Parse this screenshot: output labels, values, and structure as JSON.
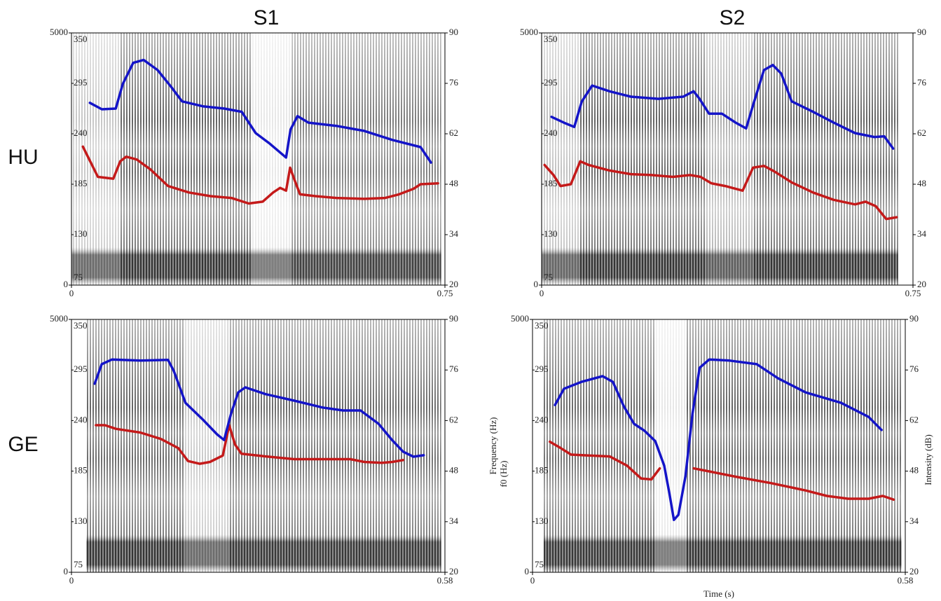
{
  "column_titles": [
    "S1",
    "S2"
  ],
  "row_labels": [
    "HU",
    "GE"
  ],
  "chart_data": [
    {
      "type": "line",
      "xlim": [
        0,
        0.75
      ],
      "xticks": [
        0,
        0.75
      ],
      "ylim": [
        75,
        350
      ],
      "yticks": [
        75,
        130,
        185,
        240,
        295,
        350
      ],
      "y2lim": [
        20,
        90
      ],
      "y2ticks": [
        20,
        34,
        48,
        62,
        76,
        90
      ],
      "freq_lim": [
        0,
        5000
      ],
      "freq_ticks": [
        0,
        5000
      ],
      "series": [
        {
          "color": "#c41a1a",
          "x": [
            0.023,
            0.053,
            0.084,
            0.098,
            0.11,
            0.131,
            0.159,
            0.194,
            0.236,
            0.279,
            0.321,
            0.356,
            0.384,
            0.405,
            0.419,
            0.431,
            0.439,
            0.447,
            0.459,
            0.49,
            0.532,
            0.588,
            0.63,
            0.658,
            0.687,
            0.701,
            0.736
          ],
          "values": [
            226,
            193,
            191,
            210,
            215,
            212,
            201,
            183,
            176,
            172,
            170,
            164,
            166,
            176,
            181,
            178,
            203,
            191,
            174,
            172,
            170,
            169,
            170,
            174,
            180,
            185,
            186
          ]
        },
        {
          "color": "#1414c8",
          "axis": "y2",
          "x": [
            0.037,
            0.061,
            0.089,
            0.103,
            0.124,
            0.145,
            0.173,
            0.201,
            0.222,
            0.265,
            0.307,
            0.342,
            0.37,
            0.398,
            0.419,
            0.431,
            0.44,
            0.454,
            0.476,
            0.532,
            0.588,
            0.644,
            0.701,
            0.722
          ],
          "values": [
            70.6,
            68.8,
            69.0,
            75.8,
            81.7,
            82.5,
            79.7,
            74.9,
            71.0,
            69.6,
            69.0,
            68.1,
            62.2,
            59.3,
            56.8,
            55.4,
            63.2,
            66.9,
            65.1,
            64.2,
            62.8,
            60.3,
            58.3,
            54.0
          ]
        }
      ]
    },
    {
      "type": "line",
      "xlim": [
        0,
        0.75
      ],
      "xticks": [
        0,
        0.75
      ],
      "ylim": [
        75,
        350
      ],
      "yticks": [
        75,
        130,
        185,
        240,
        295,
        350
      ],
      "y2lim": [
        20,
        90
      ],
      "y2ticks": [
        20,
        34,
        48,
        62,
        76,
        90
      ],
      "freq_lim": [
        0,
        5000
      ],
      "freq_ticks": [
        0,
        5000
      ],
      "series": [
        {
          "color": "#c41a1a",
          "x": [
            0.006,
            0.024,
            0.038,
            0.059,
            0.078,
            0.095,
            0.137,
            0.18,
            0.222,
            0.265,
            0.3,
            0.321,
            0.343,
            0.371,
            0.406,
            0.427,
            0.449,
            0.47,
            0.505,
            0.548,
            0.59,
            0.633,
            0.654,
            0.675,
            0.696,
            0.717
          ],
          "values": [
            206,
            195,
            183,
            185,
            210,
            206,
            200,
            196,
            195,
            193,
            195,
            193,
            186,
            183,
            178,
            203,
            205,
            199,
            187,
            176,
            168,
            163,
            166,
            161,
            147,
            149
          ]
        },
        {
          "color": "#1414c8",
          "axis": "y2",
          "x": [
            0.02,
            0.045,
            0.066,
            0.081,
            0.102,
            0.137,
            0.18,
            0.236,
            0.286,
            0.307,
            0.318,
            0.338,
            0.364,
            0.392,
            0.413,
            0.427,
            0.449,
            0.467,
            0.484,
            0.505,
            0.548,
            0.59,
            0.633,
            0.672,
            0.692,
            0.71
          ],
          "values": [
            66.7,
            65.1,
            63.9,
            70.9,
            75.4,
            73.8,
            72.3,
            71.7,
            72.3,
            73.8,
            71.9,
            67.6,
            67.6,
            65.1,
            63.5,
            69.9,
            79.7,
            81.1,
            78.7,
            71.0,
            68.1,
            65.1,
            62.2,
            61.1,
            61.3,
            57.9
          ]
        }
      ]
    },
    {
      "type": "line",
      "xlim": [
        0,
        0.58
      ],
      "xticks": [
        0,
        0.58
      ],
      "ylim": [
        75,
        350
      ],
      "yticks": [
        75,
        130,
        185,
        240,
        295,
        350
      ],
      "y2lim": [
        20,
        90
      ],
      "y2ticks": [
        20,
        34,
        48,
        62,
        76,
        90
      ],
      "freq_lim": [
        0,
        5000
      ],
      "freq_ticks": [
        0,
        5000
      ],
      "series": [
        {
          "color": "#c41a1a",
          "x": [
            0.038,
            0.052,
            0.069,
            0.107,
            0.139,
            0.166,
            0.181,
            0.199,
            0.215,
            0.235,
            0.245,
            0.254,
            0.264,
            0.302,
            0.346,
            0.39,
            0.433,
            0.455,
            0.482,
            0.498,
            0.515
          ],
          "values": [
            235,
            235,
            231,
            227,
            220,
            210,
            196,
            193,
            195,
            202,
            235,
            214,
            204,
            201,
            198,
            198,
            198,
            195,
            194,
            195,
            197
          ]
        },
        {
          "color": "#1414c8",
          "axis": "y2",
          "x": [
            0.036,
            0.047,
            0.063,
            0.107,
            0.15,
            0.159,
            0.177,
            0.205,
            0.226,
            0.237,
            0.248,
            0.259,
            0.27,
            0.302,
            0.346,
            0.39,
            0.422,
            0.449,
            0.477,
            0.498,
            0.515,
            0.531,
            0.547
          ],
          "values": [
            72.2,
            77.6,
            78.9,
            78.6,
            78.8,
            75.7,
            66.9,
            62.1,
            58.2,
            56.6,
            64.0,
            69.8,
            71.2,
            69.3,
            67.5,
            65.6,
            64.8,
            64.8,
            61.1,
            56.6,
            53.4,
            52.0,
            52.4
          ]
        }
      ]
    },
    {
      "type": "line",
      "xlim": [
        0,
        0.58
      ],
      "xticks": [
        0,
        0.58
      ],
      "ylim": [
        75,
        350
      ],
      "yticks": [
        75,
        130,
        185,
        240,
        295,
        350
      ],
      "y2lim": [
        20,
        90
      ],
      "y2ticks": [
        20,
        34,
        48,
        62,
        76,
        90
      ],
      "freq_lim": [
        0,
        5000
      ],
      "freq_ticks": [
        0,
        5000
      ],
      "xlabel": "Time (s)",
      "freq_label": "Frequency (Hz)",
      "ylabel": "f0 (Hz)",
      "y2label": "Intensity (dB)",
      "series": [
        {
          "color": "#c41a1a",
          "x": [
            0.027,
            0.044,
            0.06,
            0.087,
            0.12,
            0.147,
            0.169,
            0.185,
            0.198,
            0.224,
            0.251,
            0.273,
            0.316,
            0.371,
            0.425,
            0.458,
            0.491,
            0.523,
            0.545,
            0.562
          ],
          "values": [
            217,
            210,
            203,
            202,
            201,
            191,
            177,
            176,
            188,
            null,
            188,
            185,
            179,
            172,
            164,
            158,
            155,
            155,
            158,
            154
          ]
        },
        {
          "color": "#1414c8",
          "axis": "y2",
          "x": [
            0.035,
            0.049,
            0.076,
            0.109,
            0.125,
            0.142,
            0.158,
            0.174,
            0.191,
            0.205,
            0.213,
            0.22,
            0.227,
            0.238,
            0.249,
            0.26,
            0.275,
            0.307,
            0.349,
            0.382,
            0.425,
            0.48,
            0.523,
            0.543
          ],
          "values": [
            66.3,
            70.8,
            72.7,
            74.3,
            72.7,
            66.0,
            61.1,
            59.2,
            56.3,
            49.5,
            41.8,
            34.5,
            35.9,
            46.6,
            64.0,
            76.6,
            78.9,
            78.6,
            77.6,
            73.7,
            69.8,
            66.9,
            63.0,
            59.4
          ]
        }
      ]
    }
  ]
}
